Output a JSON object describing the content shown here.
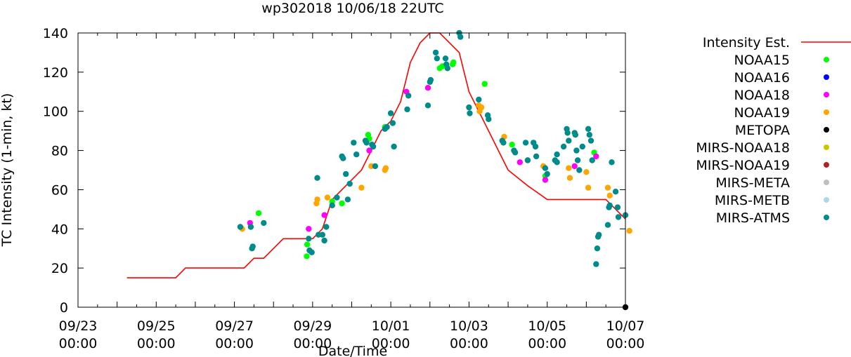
{
  "chart_data": {
    "type": "scatter",
    "title": "wp302018 10/06/18 22UTC",
    "xlabel": "Date/Time",
    "ylabel": "TC Intensity (1-min, kt)",
    "xlim": [
      0,
      14
    ],
    "ylim": [
      0,
      140
    ],
    "x_unit": "days since 09/23 00:00",
    "yticks": [
      0,
      20,
      40,
      60,
      80,
      100,
      120,
      140
    ],
    "xticks": [
      {
        "x": 0,
        "date": "09/23",
        "time": "00:00"
      },
      {
        "x": 2,
        "date": "09/25",
        "time": "00:00"
      },
      {
        "x": 4,
        "date": "09/27",
        "time": "00:00"
      },
      {
        "x": 6,
        "date": "09/29",
        "time": "00:00"
      },
      {
        "x": 8,
        "date": "10/01",
        "time": "00:00"
      },
      {
        "x": 10,
        "date": "10/03",
        "time": "00:00"
      },
      {
        "x": 12,
        "date": "10/05",
        "time": "00:00"
      },
      {
        "x": 14,
        "date": "10/07",
        "time": "00:00"
      }
    ],
    "intensity_est": {
      "name": "Intensity Est.",
      "color": "#ff0000",
      "points": [
        [
          1.25,
          15
        ],
        [
          2.5,
          15
        ],
        [
          2.75,
          20
        ],
        [
          4.25,
          20
        ],
        [
          4.5,
          25
        ],
        [
          4.75,
          25
        ],
        [
          5.25,
          35
        ],
        [
          5.75,
          35
        ],
        [
          6.0,
          35
        ],
        [
          6.25,
          40
        ],
        [
          6.5,
          55
        ],
        [
          6.75,
          60
        ],
        [
          7.25,
          70
        ],
        [
          7.75,
          90
        ],
        [
          8.0,
          95
        ],
        [
          8.25,
          105
        ],
        [
          8.5,
          125
        ],
        [
          8.75,
          135
        ],
        [
          9.0,
          140
        ],
        [
          9.25,
          140
        ],
        [
          9.75,
          130
        ],
        [
          10.0,
          110
        ],
        [
          10.25,
          100
        ],
        [
          10.5,
          90
        ],
        [
          10.75,
          80
        ],
        [
          11.0,
          70
        ],
        [
          11.5,
          62
        ],
        [
          12.0,
          55
        ],
        [
          12.5,
          55
        ],
        [
          13.0,
          55
        ],
        [
          13.25,
          55
        ],
        [
          13.5,
          55
        ],
        [
          13.75,
          50
        ],
        [
          14.0,
          45
        ]
      ]
    },
    "series": [
      {
        "name": "NOAA15",
        "color": "#00ff00",
        "points": [
          [
            4.62,
            48
          ],
          [
            5.85,
            26
          ],
          [
            5.86,
            32
          ],
          [
            6.5,
            54
          ],
          [
            6.75,
            53
          ],
          [
            7.42,
            88
          ],
          [
            7.45,
            86
          ],
          [
            7.85,
            92
          ],
          [
            9.25,
            122
          ],
          [
            9.32,
            123
          ],
          [
            9.58,
            124
          ],
          [
            9.6,
            125
          ],
          [
            10.4,
            114
          ],
          [
            11.1,
            83
          ],
          [
            11.95,
            67
          ],
          [
            13.2,
            79
          ]
        ]
      },
      {
        "name": "NOAA16",
        "color": "#0000ff",
        "points": []
      },
      {
        "name": "NOAA18",
        "color": "#ff00ff",
        "points": [
          [
            4.4,
            43
          ],
          [
            5.9,
            40
          ],
          [
            6.3,
            47
          ],
          [
            7.45,
            80
          ],
          [
            8.4,
            110
          ],
          [
            8.95,
            112
          ],
          [
            11.3,
            74
          ],
          [
            11.95,
            65
          ],
          [
            12.7,
            72
          ],
          [
            13.25,
            77
          ]
        ]
      },
      {
        "name": "NOAA19",
        "color": "#ffa500",
        "points": [
          [
            4.2,
            40
          ],
          [
            6.1,
            53
          ],
          [
            6.12,
            55
          ],
          [
            6.38,
            56
          ],
          [
            7.25,
            61
          ],
          [
            7.5,
            72
          ],
          [
            7.85,
            70
          ],
          [
            7.87,
            71
          ],
          [
            10.25,
            103
          ],
          [
            10.27,
            100
          ],
          [
            10.32,
            102
          ],
          [
            10.9,
            87
          ],
          [
            11.5,
            75
          ],
          [
            11.9,
            72
          ],
          [
            12.55,
            71
          ],
          [
            12.58,
            66
          ],
          [
            13.0,
            69
          ],
          [
            13.05,
            61
          ],
          [
            13.55,
            61
          ],
          [
            13.6,
            57
          ],
          [
            14.1,
            39
          ]
        ]
      },
      {
        "name": "METOPA",
        "color": "#000000",
        "points": [
          [
            14.0,
            0
          ]
        ]
      },
      {
        "name": "MIRS-NOAA18",
        "color": "#c8c800",
        "points": []
      },
      {
        "name": "MIRS-NOAA19",
        "color": "#b22222",
        "points": []
      },
      {
        "name": "MIRS-META",
        "color": "#bebebe",
        "points": []
      },
      {
        "name": "MIRS-METB",
        "color": "#add8e6",
        "points": []
      },
      {
        "name": "MIRS-ATMS",
        "color": "#008b8b",
        "points": [
          [
            4.15,
            41
          ],
          [
            4.42,
            41
          ],
          [
            4.45,
            30
          ],
          [
            4.47,
            31
          ],
          [
            4.75,
            43
          ],
          [
            5.9,
            35
          ],
          [
            5.92,
            29
          ],
          [
            5.98,
            28
          ],
          [
            6.12,
            66
          ],
          [
            6.15,
            37
          ],
          [
            6.25,
            37
          ],
          [
            6.3,
            34
          ],
          [
            6.35,
            41
          ],
          [
            6.5,
            52
          ],
          [
            6.62,
            56
          ],
          [
            6.75,
            77
          ],
          [
            6.78,
            76
          ],
          [
            6.85,
            68
          ],
          [
            6.9,
            55
          ],
          [
            6.95,
            63
          ],
          [
            7.05,
            84
          ],
          [
            7.12,
            78
          ],
          [
            7.35,
            85
          ],
          [
            7.38,
            84
          ],
          [
            7.52,
            83
          ],
          [
            7.55,
            82
          ],
          [
            7.6,
            72
          ],
          [
            7.85,
            91
          ],
          [
            7.9,
            92
          ],
          [
            8.0,
            99
          ],
          [
            8.05,
            94
          ],
          [
            8.08,
            82
          ],
          [
            8.42,
            101
          ],
          [
            8.45,
            108
          ],
          [
            8.95,
            103
          ],
          [
            9.0,
            115
          ],
          [
            9.02,
            116
          ],
          [
            9.15,
            130
          ],
          [
            9.18,
            127
          ],
          [
            9.4,
            127
          ],
          [
            9.42,
            124
          ],
          [
            9.45,
            122
          ],
          [
            9.75,
            140
          ],
          [
            9.78,
            138
          ],
          [
            10.0,
            102
          ],
          [
            10.02,
            99
          ],
          [
            10.25,
            106
          ],
          [
            10.48,
            98
          ],
          [
            10.5,
            96
          ],
          [
            10.85,
            85
          ],
          [
            10.88,
            84
          ],
          [
            11.15,
            80
          ],
          [
            11.18,
            79
          ],
          [
            11.45,
            84
          ],
          [
            11.5,
            75
          ],
          [
            11.65,
            84
          ],
          [
            11.7,
            82
          ],
          [
            11.72,
            77
          ],
          [
            11.95,
            71
          ],
          [
            12.0,
            68
          ],
          [
            12.2,
            75
          ],
          [
            12.25,
            74
          ],
          [
            12.25,
            78
          ],
          [
            12.42,
            82
          ],
          [
            12.5,
            91
          ],
          [
            12.52,
            89
          ],
          [
            12.55,
            85
          ],
          [
            12.7,
            89
          ],
          [
            12.72,
            88
          ],
          [
            12.75,
            80
          ],
          [
            12.78,
            75
          ],
          [
            12.82,
            70
          ],
          [
            12.9,
            82
          ],
          [
            13.05,
            91
          ],
          [
            13.08,
            88
          ],
          [
            13.12,
            85
          ],
          [
            13.15,
            75
          ],
          [
            13.25,
            22
          ],
          [
            13.28,
            30
          ],
          [
            13.3,
            36
          ],
          [
            13.32,
            37
          ],
          [
            13.55,
            42
          ],
          [
            13.58,
            51
          ],
          [
            13.6,
            52
          ],
          [
            13.65,
            74
          ],
          [
            13.75,
            59
          ],
          [
            13.8,
            51
          ],
          [
            13.82,
            46
          ],
          [
            14.0,
            47
          ]
        ]
      }
    ],
    "legend": [
      {
        "label": "Intensity Est.",
        "kind": "line",
        "color": "#ff0000"
      },
      {
        "label": "NOAA15",
        "kind": "point",
        "color": "#00ff00"
      },
      {
        "label": "NOAA16",
        "kind": "point",
        "color": "#0000ff"
      },
      {
        "label": "NOAA18",
        "kind": "point",
        "color": "#ff00ff"
      },
      {
        "label": "NOAA19",
        "kind": "point",
        "color": "#ffa500"
      },
      {
        "label": "METOPA",
        "kind": "point",
        "color": "#000000"
      },
      {
        "label": "MIRS-NOAA18",
        "kind": "point",
        "color": "#c8c800"
      },
      {
        "label": "MIRS-NOAA19",
        "kind": "point",
        "color": "#b22222"
      },
      {
        "label": "MIRS-META",
        "kind": "point",
        "color": "#bebebe"
      },
      {
        "label": "MIRS-METB",
        "kind": "point",
        "color": "#add8e6"
      },
      {
        "label": "MIRS-ATMS",
        "kind": "point",
        "color": "#008b8b"
      }
    ],
    "legend_position": "right"
  }
}
